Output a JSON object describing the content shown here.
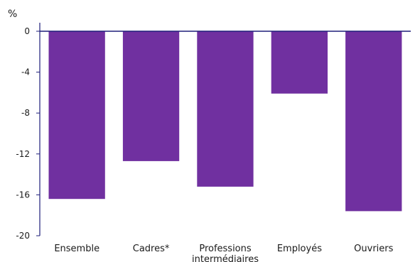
{
  "chart_data": {
    "type": "bar",
    "ylabel": "%",
    "categories": [
      "Ensemble",
      "Cadres*",
      "Professions intermédiaires",
      "Employés",
      "Ouvriers"
    ],
    "category_lines": [
      [
        "Ensemble"
      ],
      [
        "Cadres*"
      ],
      [
        "Professions",
        "intermédiaires"
      ],
      [
        "Employés"
      ],
      [
        "Ouvriers"
      ]
    ],
    "values": [
      -16.4,
      -12.7,
      -15.2,
      -6.1,
      -17.6
    ],
    "ylim": [
      -20,
      0
    ],
    "yticks": [
      0,
      -4,
      -8,
      -12,
      -16,
      -20
    ],
    "grid": false,
    "bar_color": "#7030a0",
    "axis_color": "#1f1f7a"
  }
}
